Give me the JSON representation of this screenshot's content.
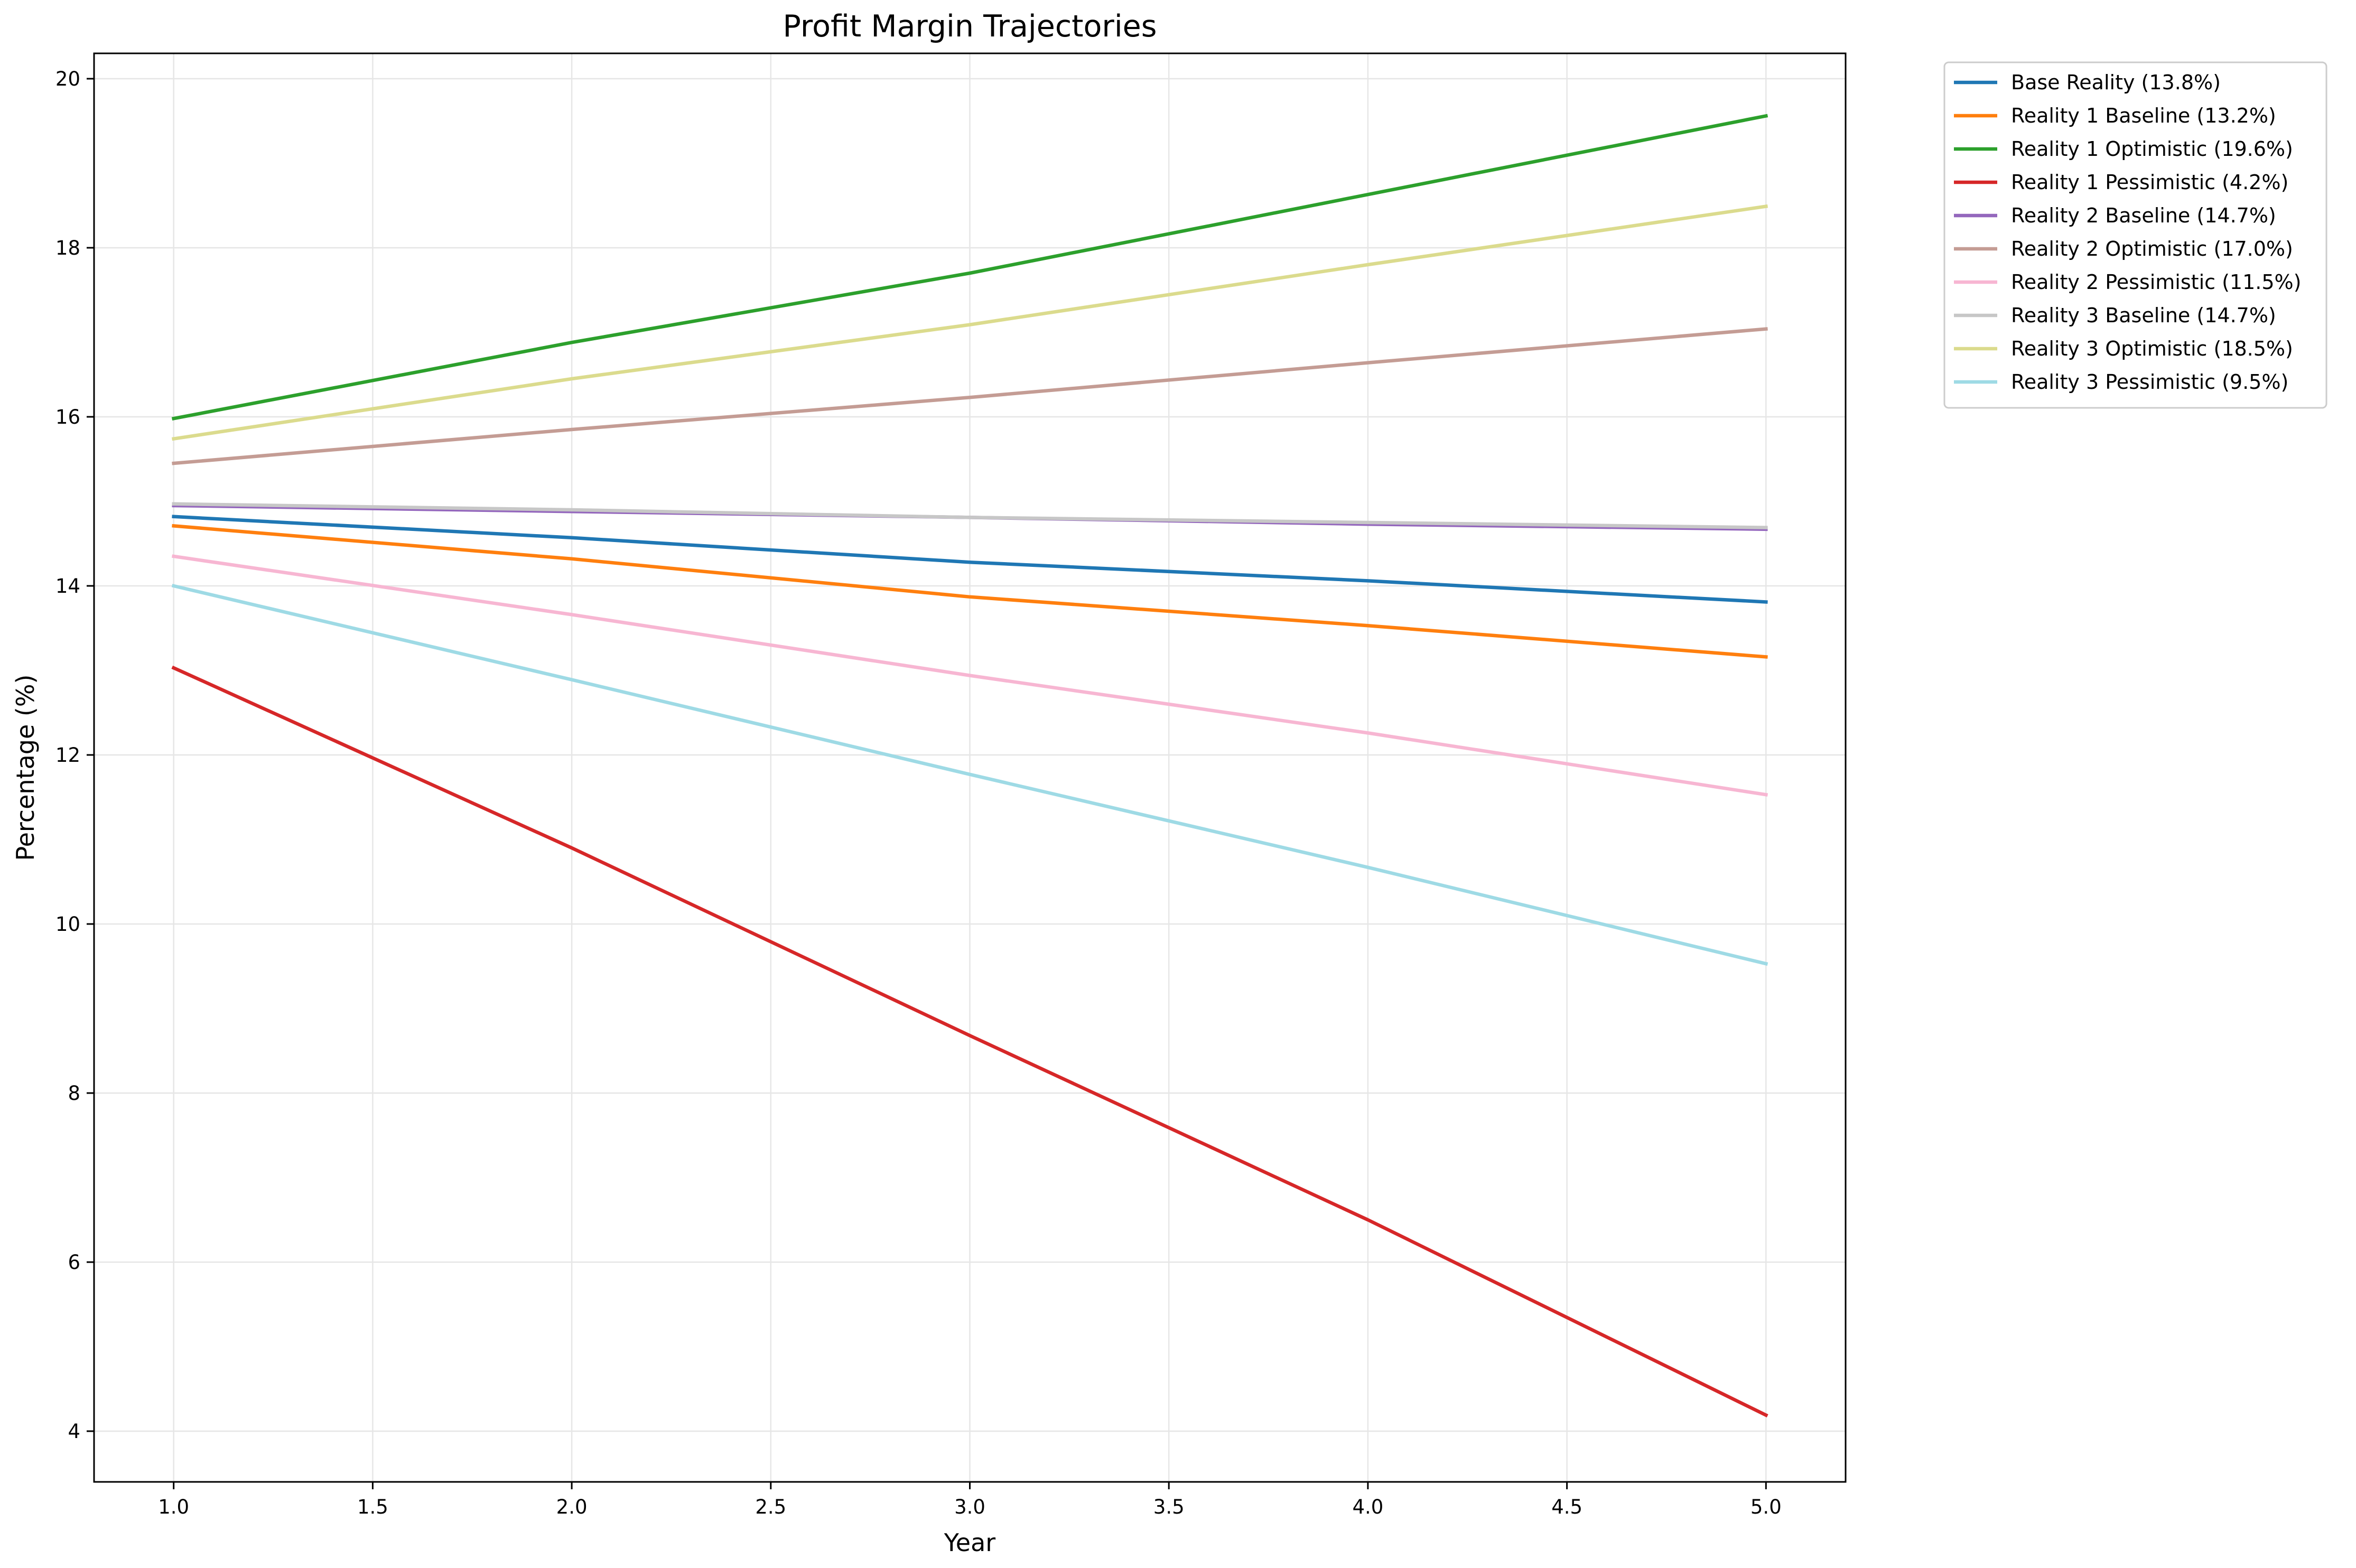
{
  "chart_data": {
    "type": "line",
    "title": "Profit Margin Trajectories",
    "xlabel": "Year",
    "ylabel": "Percentage (%)",
    "xlim": [
      0.8,
      5.2
    ],
    "ylim": [
      3.4,
      20.3
    ],
    "x_ticks": [
      1.0,
      1.5,
      2.0,
      2.5,
      3.0,
      3.5,
      4.0,
      4.5,
      5.0
    ],
    "x_tick_labels": [
      "1.0",
      "1.5",
      "2.0",
      "2.5",
      "3.0",
      "3.5",
      "4.0",
      "4.5",
      "5.0"
    ],
    "y_ticks": [
      4,
      6,
      8,
      10,
      12,
      14,
      16,
      18,
      20
    ],
    "y_tick_labels": [
      "4",
      "6",
      "8",
      "10",
      "12",
      "14",
      "16",
      "18",
      "20"
    ],
    "grid": true,
    "legend_position": "outside-top-right",
    "x": [
      1,
      2,
      3,
      4,
      5
    ],
    "series": [
      {
        "name": "Base Reality (13.8%)",
        "color": "#1f77b4",
        "values": [
          14.82,
          14.57,
          14.28,
          14.06,
          13.81
        ]
      },
      {
        "name": "Reality 1 Baseline (13.2%)",
        "color": "#ff7f0e",
        "values": [
          14.71,
          14.32,
          13.87,
          13.53,
          13.16
        ]
      },
      {
        "name": "Reality 1 Optimistic (19.6%)",
        "color": "#2ca02c",
        "values": [
          15.98,
          16.88,
          17.7,
          18.63,
          19.56
        ]
      },
      {
        "name": "Reality 1 Pessimistic (4.2%)",
        "color": "#d62728",
        "values": [
          13.03,
          10.9,
          8.68,
          6.5,
          4.19
        ]
      },
      {
        "name": "Reality 2 Baseline (14.7%)",
        "color": "#9467bd",
        "values": [
          14.95,
          14.88,
          14.81,
          14.73,
          14.67
        ]
      },
      {
        "name": "Reality 2 Optimistic (17.0%)",
        "color": "#c49c94",
        "values": [
          15.45,
          15.85,
          16.23,
          16.64,
          17.04
        ]
      },
      {
        "name": "Reality 2 Pessimistic (11.5%)",
        "color": "#f7b6d2",
        "values": [
          14.35,
          13.66,
          12.94,
          12.26,
          11.53
        ]
      },
      {
        "name": "Reality 3 Baseline (14.7%)",
        "color": "#c7c7c7",
        "values": [
          14.97,
          14.9,
          14.81,
          14.75,
          14.69
        ]
      },
      {
        "name": "Reality 3 Optimistic (18.5%)",
        "color": "#dbdb8d",
        "values": [
          15.74,
          16.45,
          17.09,
          17.8,
          18.49
        ]
      },
      {
        "name": "Reality 3 Pessimistic (9.5%)",
        "color": "#9edae5",
        "values": [
          14.0,
          12.89,
          11.77,
          10.67,
          9.53
        ]
      }
    ]
  }
}
